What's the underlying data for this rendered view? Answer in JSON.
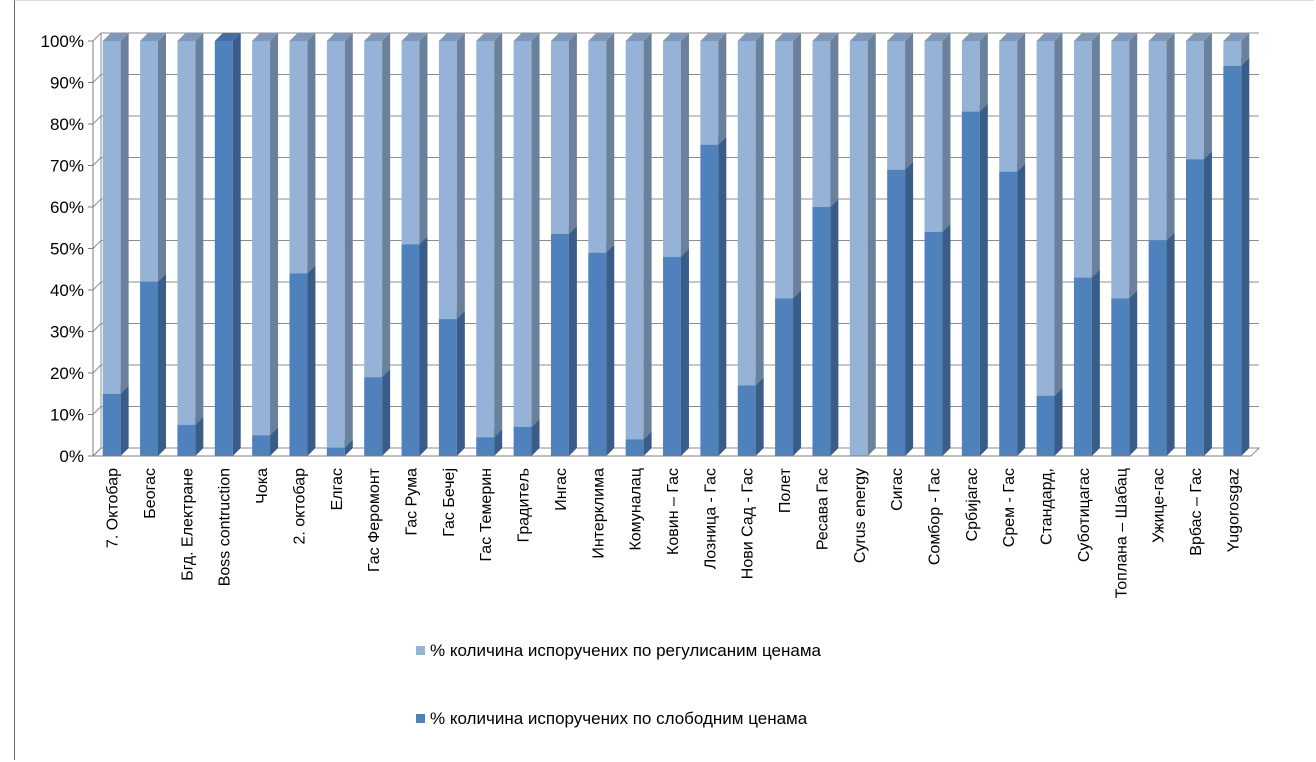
{
  "chart_data": {
    "type": "bar",
    "stacked": true,
    "percent_axis": true,
    "ylim": [
      0,
      100
    ],
    "yticks": [
      "0%",
      "10%",
      "20%",
      "30%",
      "40%",
      "50%",
      "60%",
      "70%",
      "80%",
      "90%",
      "100%"
    ],
    "grid": true,
    "legend_position": "bottom",
    "categories": [
      "7. Октобар",
      "Беогас",
      "Бгд. Електране",
      "Boss contruction",
      "Чока",
      "2. октобар",
      "Елгас",
      "Гас Феромонт",
      "Гас Рума",
      "Гас Бечеј",
      "Гас Темерин",
      "Градитељ",
      "Ингас",
      "Интерклима",
      "Комуналац",
      "Ковин – Гас",
      "Лозница - Гас",
      "Нови Сад - Гас",
      "Полет",
      "Ресава Гас",
      "Cyrus energy",
      "Сигас",
      "Сомбор - Гас",
      "Србијагас",
      "Срем - Гас",
      "Стандард,",
      "Суботицагас",
      "Топлана – Шабац",
      "Ужице-гас",
      "Врбас – Гас",
      "Yugorosgaz"
    ],
    "series": [
      {
        "name": "% количина испоручених по слободним ценама",
        "color": "#4F81BD",
        "values": [
          15,
          42,
          7.5,
          100,
          5,
          44,
          2,
          19,
          51,
          33,
          4.5,
          7,
          53.5,
          49,
          4,
          48,
          75,
          17,
          38,
          60,
          0,
          69,
          54,
          83,
          68.5,
          14.5,
          43,
          38,
          52,
          71.5,
          94
        ]
      },
      {
        "name": "% количина испоручених по регулисаним ценама",
        "color": "#95B3D7",
        "values": [
          85,
          58,
          92.5,
          0,
          95,
          56,
          98,
          81,
          49,
          67,
          95.5,
          93,
          46.5,
          51,
          96,
          52,
          25,
          83,
          62,
          40,
          100,
          31,
          46,
          17,
          31.5,
          85.5,
          57,
          62,
          48,
          28.5,
          6
        ]
      }
    ],
    "legend_order": [
      1,
      0
    ]
  }
}
